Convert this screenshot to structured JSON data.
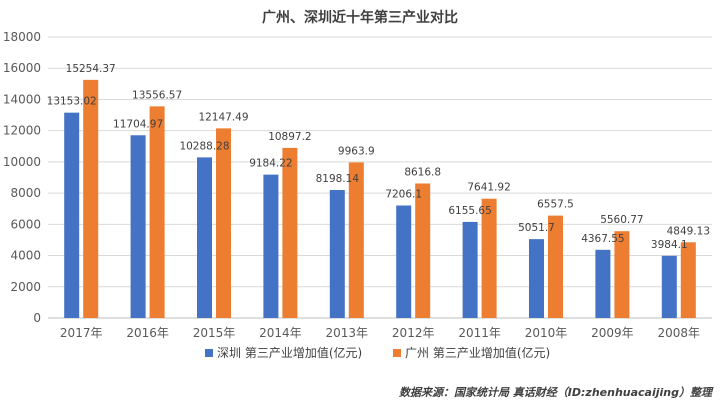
{
  "chart_data": {
    "type": "bar",
    "title": "广州、深圳近十年第三产业对比",
    "categories": [
      "2017年",
      "2016年",
      "2015年",
      "2014年",
      "2013年",
      "2012年",
      "2011年",
      "2010年",
      "2009年",
      "2008年"
    ],
    "series": [
      {
        "name": "深圳 第三产业增加值(亿元)",
        "color": "#4472c4",
        "values": [
          13153.02,
          11704.97,
          10288.28,
          9184.22,
          8198.14,
          7206.1,
          6155.65,
          5051.7,
          4367.55,
          3984.1
        ],
        "labels": [
          "13153.02",
          "11704.97",
          "10288.28",
          "9184.22",
          "8198.14",
          "7206.1",
          "6155.65",
          "5051.7",
          "4367.55",
          "3984.1"
        ]
      },
      {
        "name": "广州 第三产业增加值(亿元)",
        "color": "#ed7d31",
        "values": [
          15254.37,
          13556.57,
          12147.49,
          10897.2,
          9963.9,
          8616.8,
          7641.92,
          6557.5,
          5560.77,
          4849.13
        ],
        "labels": [
          "15254.37",
          "13556.57",
          "12147.49",
          "10897.2",
          "9963.9",
          "8616.8",
          "7641.92",
          "6557.5",
          "5560.77",
          "4849.13"
        ]
      }
    ],
    "ylim": [
      0,
      18000
    ],
    "yticks": [
      0,
      2000,
      4000,
      6000,
      8000,
      10000,
      12000,
      14000,
      16000,
      18000
    ],
    "grid": true,
    "legend": "bottom",
    "xlabel": "",
    "ylabel": ""
  },
  "source": "数据来源：国家统计局 真话财经（ID:zhenhuacaijing）整理"
}
